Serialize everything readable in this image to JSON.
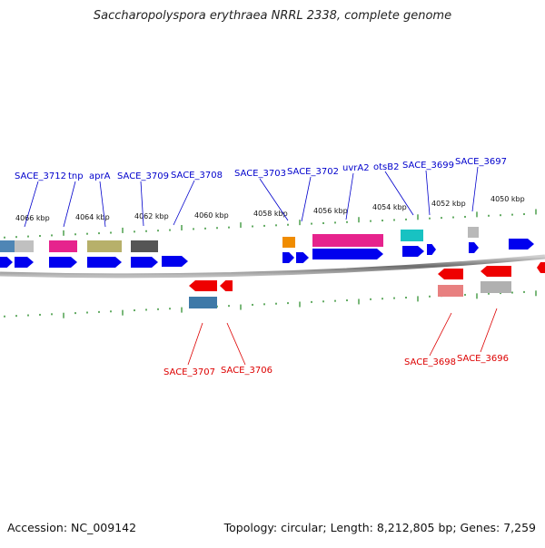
{
  "title": "Saccharopolyspora erythraea NRRL 2338, complete genome",
  "footer": {
    "accession": "Accession: NC_009142",
    "summary": "Topology: circular; Length: 8,212,805 bp; Genes: 7,259"
  },
  "kbp_ticks": [
    "4066 kbp",
    "4064 kbp",
    "4062 kbp",
    "4060 kbp",
    "4058 kbp",
    "4056 kbp",
    "4054 kbp",
    "4052 kbp",
    "4050 kbp"
  ],
  "forward_labels": [
    "SACE_3712",
    "tnp",
    "aprA",
    "SACE_3709",
    "SACE_3708",
    "SACE_3703",
    "SACE_3702",
    "uvrA2",
    "otsB2",
    "SACE_3699",
    "SACE_3697"
  ],
  "reverse_labels": [
    "SACE_3707",
    "SACE_3706",
    "SACE_3698",
    "SACE_3696"
  ],
  "colors": {
    "forward_label": "#0000cc",
    "reverse_label": "#dd0000",
    "forward_gene": "#0000ee",
    "reverse_gene": "#ee0000",
    "backbone": "#888888",
    "tick": "#228822"
  }
}
